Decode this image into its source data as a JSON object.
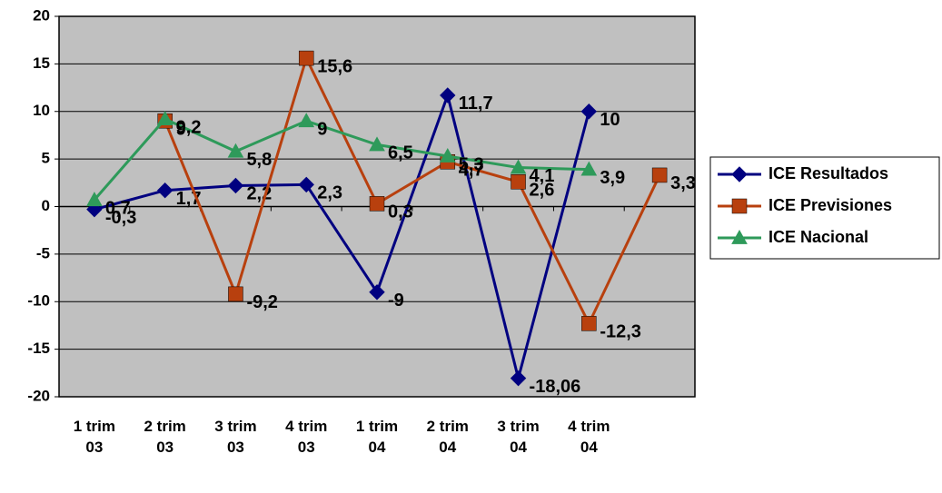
{
  "chart_data": {
    "type": "line",
    "categories": [
      "1 trim 03",
      "2 trim 03",
      "3 trim 03",
      "4 trim 03",
      "1 trim 04",
      "2 trim 04",
      "3 trim 04",
      "4 trim 04",
      null
    ],
    "series": [
      {
        "name": "ICE Resultados",
        "color": "#000080",
        "marker": "diamond",
        "values": [
          -0.3,
          1.7,
          2.2,
          2.3,
          -9,
          11.7,
          -18.06,
          10,
          null
        ],
        "value_labels": [
          "-0,3",
          "1,7",
          "2,2",
          "2,3",
          "-9",
          "11,7",
          "-18,06",
          "10",
          null
        ]
      },
      {
        "name": "ICE Previsiones",
        "color": "#b8400e",
        "marker": "square",
        "values": [
          null,
          9,
          -9.2,
          15.6,
          0.3,
          4.7,
          2.6,
          -12.3,
          3.3
        ],
        "value_labels": [
          null,
          "9",
          "-9,2",
          "15,6",
          "0,3",
          "4,7",
          "2,6",
          "-12,3",
          "3,3"
        ]
      },
      {
        "name": "ICE Nacional",
        "color": "#2e9a5a",
        "marker": "triangle",
        "values": [
          0.7,
          9.2,
          5.8,
          9,
          6.5,
          5.3,
          4.1,
          3.9,
          null
        ],
        "value_labels": [
          "0,7",
          "9,2",
          "5,8",
          "9",
          "6,5",
          "5,3",
          "4,1",
          "3,9",
          null
        ]
      }
    ],
    "ylim": [
      -20,
      20
    ],
    "yticks": [
      -20,
      -15,
      -10,
      -5,
      0,
      5,
      10,
      15,
      20
    ],
    "grid": true,
    "legend": "right",
    "plot_background": "#c0c0c0"
  }
}
